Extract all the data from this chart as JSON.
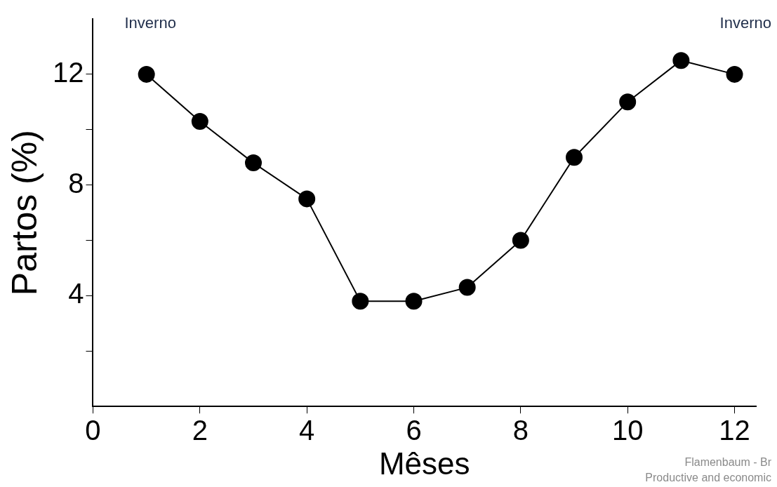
{
  "chart_data": {
    "type": "line",
    "xlabel": "Mêses",
    "ylabel": "Partos (%)",
    "x": [
      1,
      2,
      3,
      4,
      5,
      6,
      7,
      8,
      9,
      10,
      11,
      12
    ],
    "series": [
      {
        "color": "#000000",
        "values": [
          12,
          10.3,
          8.8,
          7.5,
          3.8,
          3.8,
          4.3,
          6.0,
          9.0,
          11.0,
          12.5,
          12
        ]
      }
    ],
    "xlim": [
      0,
      12.4
    ],
    "xticks": [
      0,
      2,
      4,
      6,
      8,
      10,
      12
    ],
    "ylim": [
      0,
      14
    ],
    "yticks": [
      {
        "value": 2,
        "label": null
      },
      4,
      {
        "value": 6,
        "label": null
      },
      8,
      {
        "value": 10,
        "label": null
      },
      12
    ],
    "grid": false,
    "legend": false,
    "marker": "circle",
    "line_style": "solid",
    "annotations": [
      "Inverno",
      "Inverno",
      "Flamenbaum - Br",
      "Productive and economic"
    ]
  }
}
